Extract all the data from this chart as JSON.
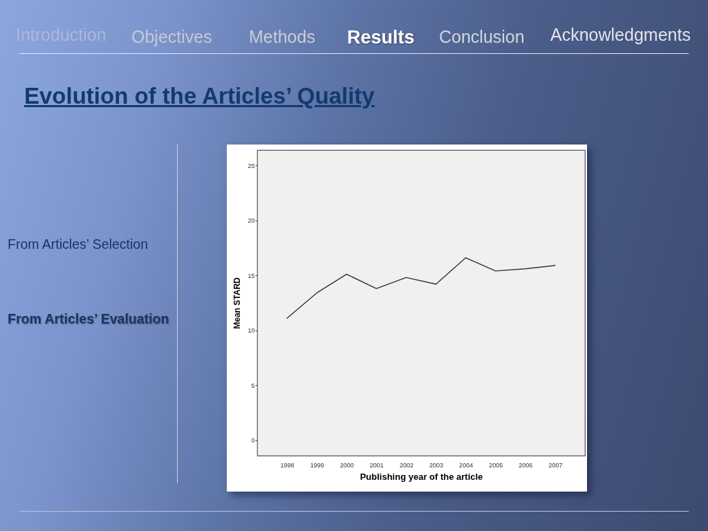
{
  "chart_data": {
    "type": "line",
    "title": "Evolution of the Articles’ Quality",
    "xlabel": "Publishing year of the article",
    "ylabel": "Mean STARD",
    "categories": [
      "1998",
      "1999",
      "2000",
      "2001",
      "2002",
      "2003",
      "2004",
      "2005",
      "2006",
      "2007"
    ],
    "series": [
      {
        "color": "#333333",
        "values": [
          11.1,
          13.4,
          15.1,
          13.8,
          14.8,
          14.2,
          16.6,
          15.4,
          15.6,
          15.9
        ]
      }
    ],
    "ylim": [
      -1.4,
      26.4
    ],
    "yticks": [
      0,
      5,
      10,
      15,
      20,
      25
    ],
    "grid": false,
    "marker": "none",
    "line_style": "solid",
    "annotations": [
      "Introduction",
      "Objectives",
      "Methods",
      "Results",
      "Conclusion",
      "Acknowledgments",
      "From Articles’ Selection",
      "From Articles’ Evaluation"
    ]
  }
}
